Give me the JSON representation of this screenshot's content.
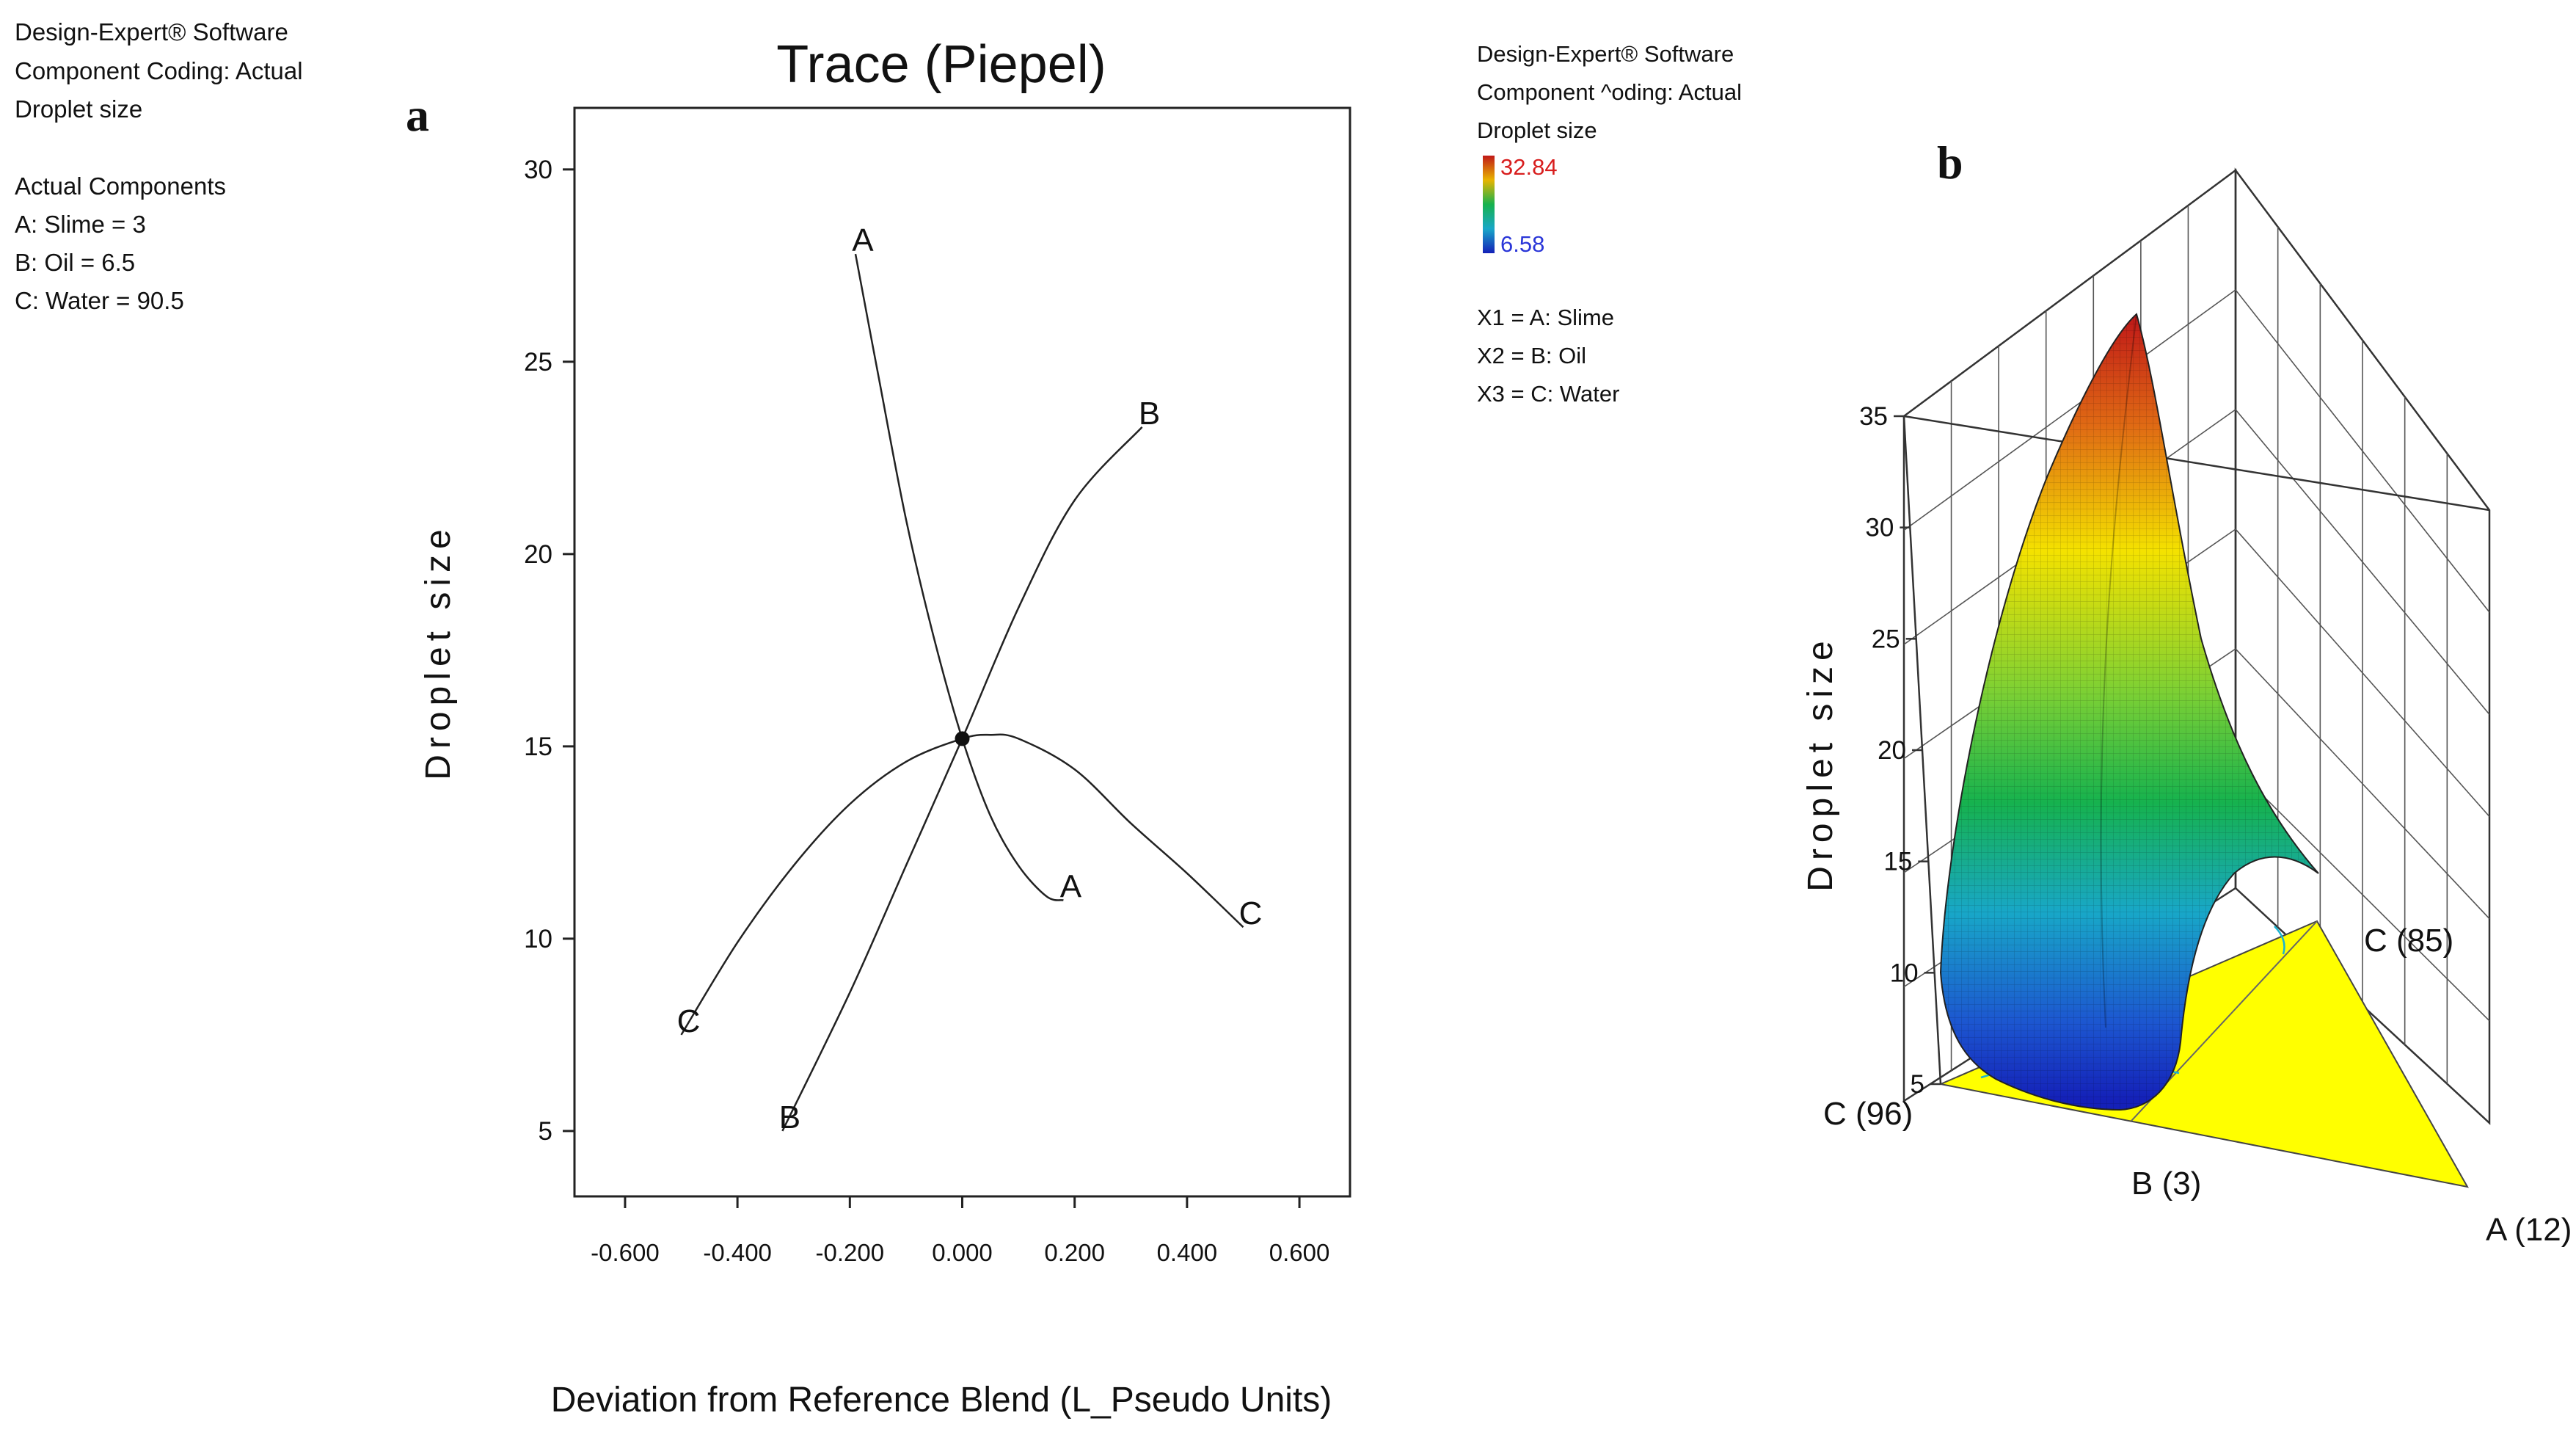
{
  "chart_data": [
    {
      "type": "line",
      "panel_label": "a",
      "title": "Trace (Piepel)",
      "xlabel": "Deviation from Reference Blend (L_Pseudo Units)",
      "ylabel": "Droplet size",
      "xlim": [
        -0.69,
        0.69
      ],
      "ylim": [
        3.3,
        31.6
      ],
      "x_ticks": [
        -0.6,
        -0.4,
        -0.2,
        0.0,
        0.2,
        0.4,
        0.6
      ],
      "x_tick_labels": [
        "-0.600",
        "-0.400",
        "-0.200",
        "0.000",
        "0.200",
        "0.400",
        "0.600"
      ],
      "y_ticks": [
        5,
        10,
        15,
        20,
        25,
        30
      ],
      "y_tick_labels": [
        "5",
        "10",
        "15",
        "20",
        "25",
        "30"
      ],
      "reference_point": {
        "x": 0.0,
        "y": 15.2
      },
      "info_block": {
        "software": "Design-Expert® Software",
        "coding": "Component Coding: Actual",
        "response": "Droplet size",
        "components_heading": "Actual Components",
        "components": [
          "A: Slime = 3",
          "B: Oil = 6.5",
          "C: Water = 90.5"
        ]
      },
      "series": [
        {
          "name": "A",
          "start_label": "A",
          "end_label": "A",
          "x": [
            -0.19,
            -0.15,
            -0.1,
            -0.05,
            0.0,
            0.05,
            0.1,
            0.15,
            0.18
          ],
          "y": [
            27.8,
            24.7,
            20.9,
            17.8,
            15.2,
            13.2,
            11.9,
            11.1,
            11.0
          ]
        },
        {
          "name": "B",
          "start_label": "B",
          "end_label": "B",
          "x": [
            -0.32,
            -0.2,
            -0.1,
            0.0,
            0.1,
            0.2,
            0.32
          ],
          "y": [
            5.0,
            8.6,
            11.9,
            15.2,
            18.6,
            21.4,
            23.3
          ]
        },
        {
          "name": "C",
          "start_label": "C",
          "end_label": "C",
          "x": [
            -0.5,
            -0.4,
            -0.3,
            -0.2,
            -0.1,
            0.0,
            0.05,
            0.1,
            0.2,
            0.3,
            0.4,
            0.5
          ],
          "y": [
            7.5,
            9.9,
            11.9,
            13.5,
            14.6,
            15.2,
            15.3,
            15.2,
            14.4,
            13.0,
            11.7,
            10.3
          ]
        }
      ]
    },
    {
      "type": "surface",
      "panel_label": "b",
      "zlabel": "Droplet size",
      "z_ticks": [
        5,
        10,
        15,
        20,
        25,
        30,
        35
      ],
      "z_tick_labels": [
        "5",
        "10",
        "15",
        "20",
        "25",
        "30",
        "35"
      ],
      "vertex_labels": [
        "C (96)",
        "C (85)",
        "A (12)"
      ],
      "edge_label": "B (3)",
      "colorbar": {
        "max_label": "32.84",
        "min_label": "6.58",
        "max": 32.84,
        "min": 6.58
      },
      "info_block": {
        "software": "Design-Expert® Software",
        "coding": "Component ^oding: Actual",
        "response": "Droplet size",
        "variables": [
          "X1 = A: Slime",
          "X2 = B: Oil",
          "X3 = C: Water"
        ]
      }
    }
  ],
  "colors": {
    "surface_high": "#c01818",
    "surface_mid_high": "#f4e200",
    "surface_mid": "#16b24e",
    "surface_mid_low": "#18a7c8",
    "surface_low": "#1420b8",
    "floor": "#ffff00",
    "colorbar_max_text": "#d81e1e",
    "colorbar_min_text": "#2a36d8"
  }
}
